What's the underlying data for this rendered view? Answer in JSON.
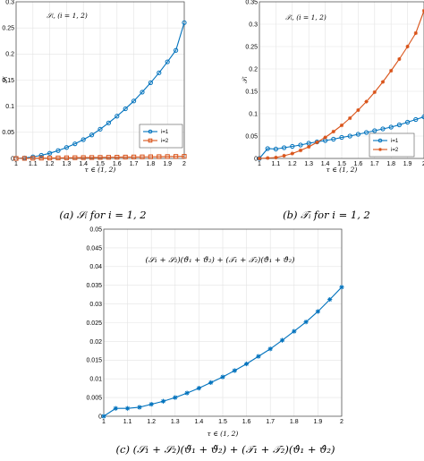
{
  "chart_data": [
    {
      "type": "line",
      "panel": "a",
      "title": "",
      "annotation": "𝒮ᵢ, (i = 1, 2)",
      "xlabel": "τ ∈ (1, 2)",
      "ylabel": "𝒮ᵢ",
      "xlim": [
        1,
        2
      ],
      "ylim": [
        0,
        0.3
      ],
      "xticks": [
        "1",
        "1.1",
        "1.2",
        "1.3",
        "1.4",
        "1.5",
        "1.6",
        "1.7",
        "1.8",
        "1.9",
        "2"
      ],
      "yticks": [
        "0",
        "0.05",
        "0.1",
        "0.15",
        "0.2",
        "0.25",
        "0.3"
      ],
      "grid": true,
      "legend_position": "bottom-right",
      "x": [
        1.0,
        1.05,
        1.1,
        1.15,
        1.2,
        1.25,
        1.3,
        1.35,
        1.4,
        1.45,
        1.5,
        1.55,
        1.6,
        1.65,
        1.7,
        1.75,
        1.8,
        1.85,
        1.9,
        1.95,
        2.0
      ],
      "series": [
        {
          "name": "i=1",
          "color": "#0072bd",
          "marker": "circle",
          "values": [
            0.0,
            0.001,
            0.003,
            0.006,
            0.01,
            0.015,
            0.021,
            0.028,
            0.036,
            0.045,
            0.056,
            0.068,
            0.081,
            0.095,
            0.11,
            0.127,
            0.145,
            0.164,
            0.185,
            0.207,
            0.26
          ]
        },
        {
          "name": "i=2",
          "color": "#d95319",
          "marker": "square",
          "values": [
            0.0,
            0.0002,
            0.0004,
            0.0006,
            0.0008,
            0.001,
            0.0012,
            0.0014,
            0.0016,
            0.0018,
            0.002,
            0.0022,
            0.0024,
            0.0026,
            0.0028,
            0.003,
            0.0032,
            0.0034,
            0.0036,
            0.0038,
            0.004
          ]
        }
      ],
      "caption": "(a) 𝒮ᵢ for i = 1, 2"
    },
    {
      "type": "line",
      "panel": "b",
      "title": "",
      "annotation": "𝒯ᵢ, (i = 1, 2)",
      "xlabel": "τ ∈ (1, 2)",
      "ylabel": "𝒯ᵢ",
      "xlim": [
        1,
        2
      ],
      "ylim": [
        0,
        0.35
      ],
      "xticks": [
        "1",
        "1.1",
        "1.2",
        "1.3",
        "1.4",
        "1.5",
        "1.6",
        "1.7",
        "1.8",
        "1.9",
        "2"
      ],
      "yticks": [
        "0",
        "0.05",
        "0.1",
        "0.15",
        "0.2",
        "0.25",
        "0.3",
        "0.35"
      ],
      "grid": true,
      "legend_position": "bottom-right",
      "x": [
        1.0,
        1.05,
        1.1,
        1.15,
        1.2,
        1.25,
        1.3,
        1.35,
        1.4,
        1.45,
        1.5,
        1.55,
        1.6,
        1.65,
        1.7,
        1.75,
        1.8,
        1.85,
        1.9,
        1.95,
        2.0
      ],
      "series": [
        {
          "name": "i=1",
          "color": "#0072bd",
          "marker": "circle",
          "values": [
            0.0,
            0.022,
            0.021,
            0.024,
            0.027,
            0.03,
            0.034,
            0.037,
            0.04,
            0.043,
            0.047,
            0.05,
            0.054,
            0.058,
            0.062,
            0.066,
            0.07,
            0.075,
            0.081,
            0.087,
            0.093
          ]
        },
        {
          "name": "i=2",
          "color": "#d95319",
          "marker": "asterisk",
          "values": [
            0.0,
            0.001,
            0.002,
            0.006,
            0.011,
            0.018,
            0.026,
            0.036,
            0.047,
            0.06,
            0.074,
            0.09,
            0.108,
            0.127,
            0.148,
            0.171,
            0.196,
            0.222,
            0.25,
            0.28,
            0.33
          ]
        }
      ],
      "caption": "(b) 𝒯ᵢ for i = 1, 2"
    },
    {
      "type": "line",
      "panel": "c",
      "title": "",
      "annotation": "(𝒮₁ + 𝒮₂)(ϑ̃₁ + ϑ̃₂) + (𝒯₁ + 𝒯₂)(ϑ̂₁ + ϑ̂₂)",
      "xlabel": "τ ∈ (1, 2)",
      "ylabel": "",
      "xlim": [
        1,
        2
      ],
      "ylim": [
        0,
        0.05
      ],
      "xticks": [
        "1",
        "1.1",
        "1.2",
        "1.3",
        "1.4",
        "1.5",
        "1.6",
        "1.7",
        "1.8",
        "1.9",
        "2"
      ],
      "yticks": [
        "0",
        "0.005",
        "0.01",
        "0.015",
        "0.02",
        "0.025",
        "0.03",
        "0.035",
        "0.04",
        "0.045",
        "0.05"
      ],
      "grid": true,
      "x": [
        1.0,
        1.05,
        1.1,
        1.15,
        1.2,
        1.25,
        1.3,
        1.35,
        1.4,
        1.45,
        1.5,
        1.55,
        1.6,
        1.65,
        1.7,
        1.75,
        1.8,
        1.85,
        1.9,
        1.95,
        2.0
      ],
      "series": [
        {
          "color": "#0072bd",
          "marker": "asterisk",
          "values": [
            0.0,
            0.0021,
            0.0021,
            0.0024,
            0.0032,
            0.004,
            0.005,
            0.0062,
            0.0075,
            0.009,
            0.0105,
            0.0122,
            0.014,
            0.016,
            0.018,
            0.0203,
            0.0227,
            0.0252,
            0.028,
            0.0312,
            0.0345
          ]
        }
      ],
      "caption": "(c) (𝒮₁ + 𝒮₂)(ϑ̃₁ + ϑ̃₂) + (𝒯₁ + 𝒯₂)(ϑ̂₁ + ϑ̂₂)"
    }
  ]
}
